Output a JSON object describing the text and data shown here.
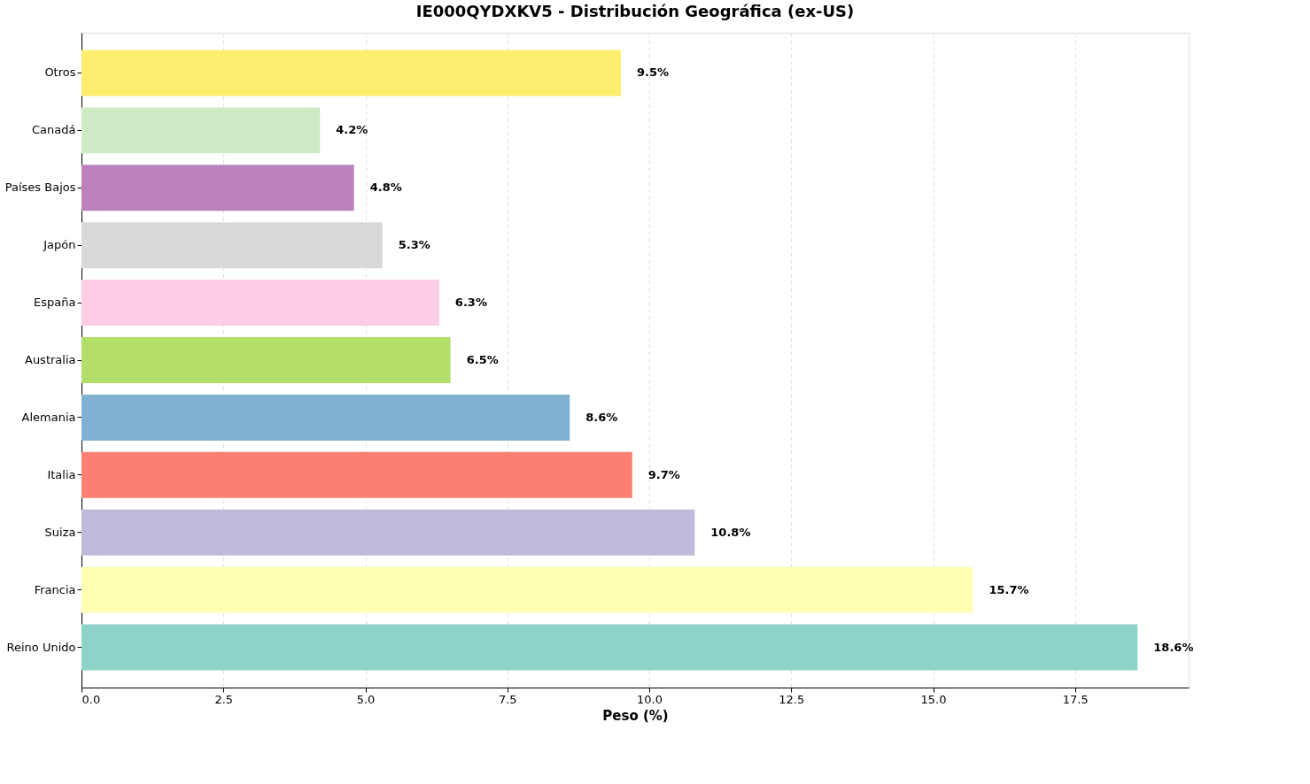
{
  "chart_data": {
    "type": "bar",
    "orientation": "horizontal",
    "title": "IE000QYDXKV5 - Distribución Geográfica (ex-US)",
    "xlabel": "Peso (%)",
    "categories": [
      "Otros",
      "Canadá",
      "Países Bajos",
      "Japón",
      "España",
      "Australia",
      "Alemania",
      "Italia",
      "Suiza",
      "Francia",
      "Reino Unido"
    ],
    "values": [
      9.5,
      4.2,
      4.8,
      5.3,
      6.3,
      6.5,
      8.6,
      9.7,
      10.8,
      15.7,
      18.6
    ],
    "colors": [
      "#ffed6f",
      "#ccebc5",
      "#bc80bd",
      "#d9d9d9",
      "#fccde5",
      "#b3de69",
      "#80b1d3",
      "#fb8072",
      "#bebada",
      "#ffffb3",
      "#8dd3c7"
    ],
    "value_labels": [
      "9.5%",
      "4.2%",
      "4.8%",
      "5.3%",
      "6.3%",
      "6.5%",
      "8.6%",
      "9.7%",
      "10.8%",
      "15.7%",
      "18.6%"
    ],
    "xlim": [
      0,
      19.5
    ],
    "xticks": [
      {
        "value": 0,
        "label": "0.0"
      },
      2.5,
      {
        "value": 5,
        "label": "5.0"
      },
      7.5,
      {
        "value": 10,
        "label": "10.0"
      },
      12.5,
      {
        "value": 15,
        "label": "15.0"
      },
      17.5
    ],
    "grid": "x"
  }
}
